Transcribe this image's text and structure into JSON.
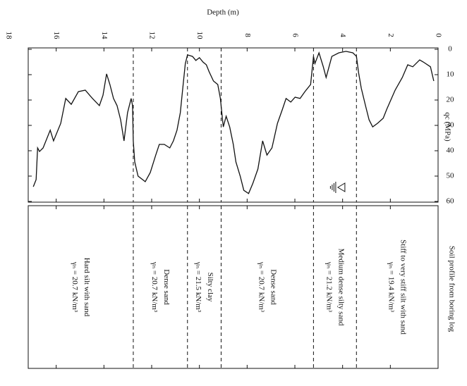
{
  "chart_data": {
    "type": "line",
    "x_label": "Depth (m)",
    "y_label": "qc (MPa)",
    "panel_title": "Soil profile from boring log",
    "xlim": [
      0,
      18
    ],
    "xticks": [
      0,
      2,
      4,
      6,
      8,
      10,
      12,
      14,
      16,
      18
    ],
    "ylim": [
      0,
      60
    ],
    "yticks": [
      0,
      10,
      20,
      30,
      40,
      50,
      60
    ],
    "color": "#111111",
    "x": [
      0.18,
      0.32,
      0.62,
      0.77,
      1.06,
      1.27,
      1.5,
      1.8,
      2.15,
      2.3,
      2.54,
      2.74,
      2.89,
      3.04,
      3.22,
      3.33,
      3.42,
      3.57,
      3.86,
      4.16,
      4.45,
      4.69,
      4.81,
      4.99,
      5.16,
      5.22,
      5.34,
      5.58,
      5.78,
      5.99,
      6.17,
      6.37,
      6.52,
      6.73,
      6.96,
      7.17,
      7.35,
      7.55,
      7.76,
      7.94,
      8.14,
      8.29,
      8.47,
      8.58,
      8.73,
      8.88,
      9.0,
      9.12,
      9.23,
      9.41,
      9.59,
      9.71,
      9.85,
      10.0,
      10.15,
      10.29,
      10.5,
      10.59,
      10.71,
      10.8,
      10.94,
      11.09,
      11.24,
      11.47,
      11.68,
      11.83,
      12.06,
      12.27,
      12.57,
      12.71,
      12.77,
      12.8,
      12.86,
      13.01,
      13.16,
      13.3,
      13.45,
      13.6,
      13.75,
      13.89,
      14.04,
      14.19,
      14.48,
      14.78,
      15.07,
      15.37,
      15.6,
      15.81,
      16.11,
      16.25,
      16.55,
      16.7,
      16.78,
      16.84,
      16.96
    ],
    "values": [
      12.5,
      6.9,
      5.0,
      4.2,
      6.9,
      6.1,
      11.1,
      16.1,
      23.6,
      27.2,
      29.2,
      30.6,
      27.8,
      22.2,
      15.3,
      9.2,
      2.8,
      1.4,
      0.8,
      1.4,
      2.8,
      11.1,
      6.9,
      1.4,
      5.6,
      2.8,
      13.9,
      16.7,
      19.4,
      18.9,
      20.8,
      19.4,
      23.6,
      29.2,
      38.9,
      41.7,
      36.1,
      47.2,
      52.8,
      56.9,
      55.6,
      50.0,
      44.4,
      37.5,
      30.6,
      26.4,
      30.6,
      19.4,
      13.9,
      12.5,
      8.9,
      6.1,
      5.0,
      3.3,
      4.4,
      2.8,
      2.2,
      5.6,
      16.7,
      25.0,
      31.9,
      36.1,
      38.9,
      37.5,
      37.5,
      41.7,
      48.6,
      52.2,
      50.0,
      44.4,
      36.1,
      22.2,
      19.4,
      25.0,
      36.1,
      27.8,
      22.2,
      19.4,
      13.9,
      9.7,
      18.1,
      22.2,
      19.4,
      16.1,
      16.7,
      21.7,
      19.4,
      29.2,
      36.1,
      31.9,
      38.9,
      40.3,
      38.9,
      51.4,
      54.2
    ],
    "layer_boundaries": [
      3.42,
      5.22,
      9.09,
      10.5,
      12.77
    ],
    "water_table_depth": 4.2,
    "layers": [
      {
        "name": "Stiff to very stiff silt with sand",
        "unit_weight": "γₙ = 19.4 kN/m³"
      },
      {
        "name": "Medium dense silty sand",
        "unit_weight": "γₙ = 21.2 kN/m³"
      },
      {
        "name": "Dense sand",
        "unit_weight": "γₙ = 20.7 kN/m³"
      },
      {
        "name": "Silty clay",
        "unit_weight": "γₙ = 21.5 kN/m³"
      },
      {
        "name": "Dense sand",
        "unit_weight": "γₙ = 20.7 kN/m³"
      },
      {
        "name": "Hard silt with sand",
        "unit_weight": "γₙ = 20.7 kN/m³"
      }
    ]
  }
}
